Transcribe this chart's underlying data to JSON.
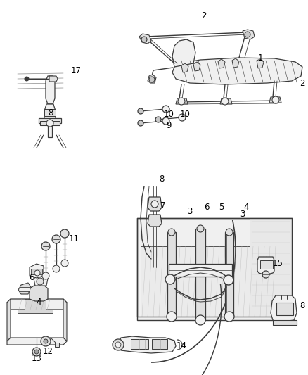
{
  "background_color": "#ffffff",
  "line_color": "#3a3a3a",
  "label_color": "#000000",
  "fig_width": 4.39,
  "fig_height": 5.33,
  "dpi": 100,
  "label_fontsize": 8.5
}
